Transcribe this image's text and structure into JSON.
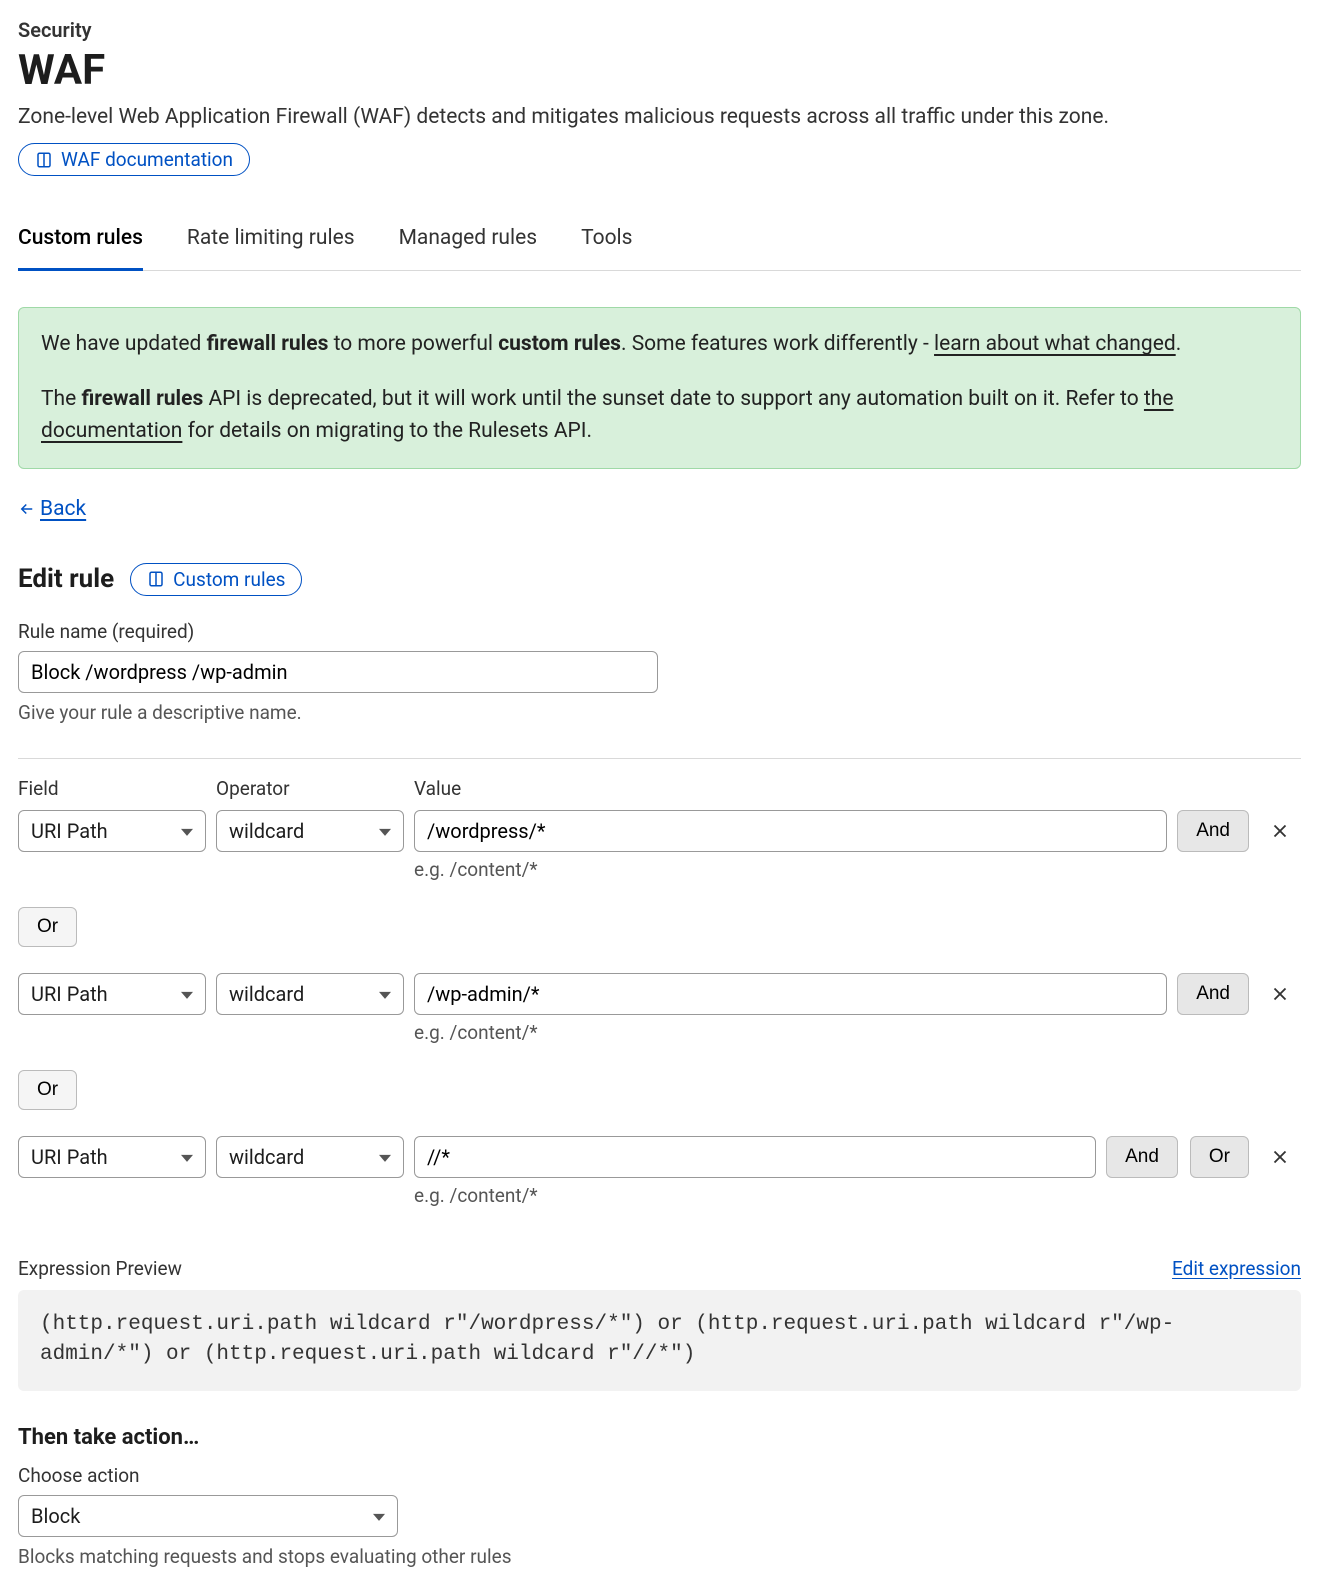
{
  "colors": {
    "accent": "#0051c3",
    "notice_bg": "#d8f0db",
    "notice_border": "#9fd9a7",
    "expr_bg": "#f2f2f2",
    "btn_bg": "#e7e7e7",
    "border": "#d9d9d9"
  },
  "header": {
    "breadcrumb": "Security",
    "title": "WAF",
    "description": "Zone-level Web Application Firewall (WAF) detects and mitigates malicious requests across all traffic under this zone.",
    "doc_link": "WAF documentation"
  },
  "tabs": [
    {
      "label": "Custom rules",
      "active": true
    },
    {
      "label": "Rate limiting rules",
      "active": false
    },
    {
      "label": "Managed rules",
      "active": false
    },
    {
      "label": "Tools",
      "active": false
    }
  ],
  "notice": {
    "p1_a": "We have updated ",
    "p1_b": "firewall rules",
    "p1_c": " to more powerful ",
    "p1_d": "custom rules",
    "p1_e": ". Some features work differently - ",
    "p1_link": "learn about what changed",
    "p1_f": ".",
    "p2_a": "The ",
    "p2_b": "firewall rules",
    "p2_c": " API is deprecated, but it will work until the sunset date to support any automation built on it. Refer to ",
    "p2_link": "the documentation",
    "p2_d": " for details on migrating to the Rulesets API."
  },
  "back": "Back",
  "edit": {
    "title": "Edit rule",
    "pill": "Custom rules",
    "name_label": "Rule name (required)",
    "name_value": "Block /wordpress /wp-admin",
    "name_helper": "Give your rule a descriptive name."
  },
  "cond_headers": {
    "field": "Field",
    "operator": "Operator",
    "value": "Value"
  },
  "conditions": [
    {
      "field": "URI Path",
      "operator": "wildcard",
      "value": "/wordpress/*",
      "hint": "e.g. /content/*",
      "buttons": [
        "And"
      ],
      "or_after": "Or"
    },
    {
      "field": "URI Path",
      "operator": "wildcard",
      "value": "/wp-admin/*",
      "hint": "e.g. /content/*",
      "buttons": [
        "And"
      ],
      "or_after": "Or"
    },
    {
      "field": "URI Path",
      "operator": "wildcard",
      "value": "//*",
      "hint": "e.g. /content/*",
      "buttons": [
        "And",
        "Or"
      ],
      "or_after": null
    }
  ],
  "expression": {
    "label": "Expression Preview",
    "edit": "Edit expression",
    "code": "(http.request.uri.path wildcard r\"/wordpress/*\") or (http.request.uri.path wildcard r\"/wp-admin/*\") or (http.request.uri.path wildcard r\"//*\")"
  },
  "action": {
    "title": "Then take action…",
    "label": "Choose action",
    "value": "Block",
    "helper": "Blocks matching requests and stops evaluating other rules"
  }
}
